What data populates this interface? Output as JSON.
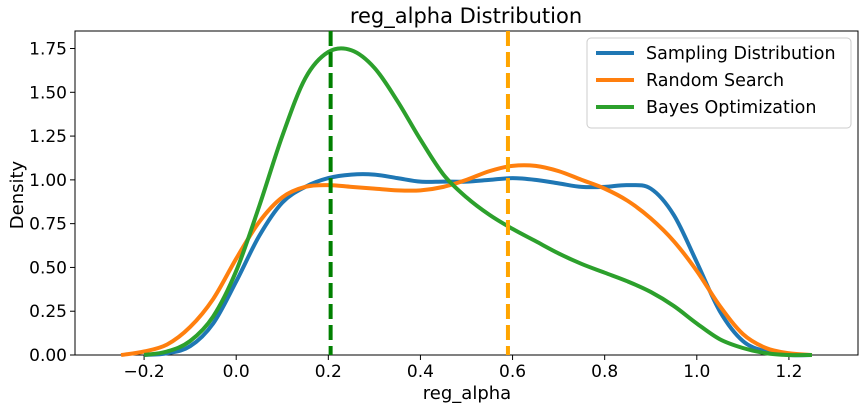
{
  "chart_data": {
    "type": "line",
    "title": "reg_alpha Distribution",
    "xlabel": "reg_alpha",
    "ylabel": "Density",
    "xlim": [
      -0.35,
      1.35
    ],
    "ylim": [
      0,
      1.85
    ],
    "xticks": [
      -0.2,
      0.0,
      0.2,
      0.4,
      0.6,
      0.8,
      1.0,
      1.2
    ],
    "xtick_labels": [
      "−0.2",
      "0.0",
      "0.2",
      "0.4",
      "0.6",
      "0.8",
      "1.0",
      "1.2"
    ],
    "yticks": [
      0.0,
      0.25,
      0.5,
      0.75,
      1.0,
      1.25,
      1.5,
      1.75
    ],
    "ytick_labels": [
      "0.00",
      "0.25",
      "0.50",
      "0.75",
      "1.00",
      "1.25",
      "1.50",
      "1.75"
    ],
    "grid": false,
    "legend_position": "top-right",
    "series": [
      {
        "name": "Sampling Distribution",
        "color": "#1f77b4",
        "x": [
          -0.2,
          -0.15,
          -0.1,
          -0.05,
          0.0,
          0.05,
          0.1,
          0.15,
          0.2,
          0.25,
          0.3,
          0.35,
          0.4,
          0.45,
          0.5,
          0.55,
          0.6,
          0.65,
          0.7,
          0.75,
          0.8,
          0.85,
          0.9,
          0.95,
          1.0,
          1.05,
          1.1,
          1.15,
          1.2,
          1.25
        ],
        "y": [
          0.0,
          0.01,
          0.05,
          0.18,
          0.42,
          0.68,
          0.87,
          0.96,
          1.01,
          1.03,
          1.03,
          1.01,
          0.99,
          0.99,
          0.99,
          1.0,
          1.01,
          1.0,
          0.98,
          0.96,
          0.96,
          0.97,
          0.95,
          0.8,
          0.53,
          0.25,
          0.08,
          0.02,
          0.0,
          0.0
        ]
      },
      {
        "name": "Random Search",
        "color": "#ff7f0e",
        "x": [
          -0.25,
          -0.2,
          -0.15,
          -0.1,
          -0.05,
          0.0,
          0.05,
          0.1,
          0.15,
          0.2,
          0.25,
          0.3,
          0.35,
          0.4,
          0.45,
          0.5,
          0.55,
          0.6,
          0.65,
          0.7,
          0.75,
          0.8,
          0.85,
          0.9,
          0.95,
          1.0,
          1.05,
          1.1,
          1.15,
          1.2,
          1.25
        ],
        "y": [
          0.0,
          0.02,
          0.06,
          0.16,
          0.32,
          0.55,
          0.76,
          0.9,
          0.96,
          0.97,
          0.96,
          0.95,
          0.94,
          0.94,
          0.96,
          1.0,
          1.05,
          1.08,
          1.08,
          1.05,
          1.0,
          0.95,
          0.88,
          0.78,
          0.65,
          0.48,
          0.28,
          0.12,
          0.04,
          0.01,
          0.0
        ]
      },
      {
        "name": "Bayes Optimization",
        "color": "#2ca02c",
        "x": [
          -0.2,
          -0.15,
          -0.1,
          -0.05,
          0.0,
          0.05,
          0.1,
          0.15,
          0.2,
          0.25,
          0.3,
          0.35,
          0.4,
          0.45,
          0.5,
          0.55,
          0.6,
          0.65,
          0.7,
          0.75,
          0.8,
          0.85,
          0.9,
          0.95,
          1.0,
          1.05,
          1.1,
          1.15,
          1.2,
          1.25
        ],
        "y": [
          0.0,
          0.02,
          0.08,
          0.22,
          0.48,
          0.85,
          1.25,
          1.58,
          1.73,
          1.74,
          1.64,
          1.45,
          1.23,
          1.03,
          0.9,
          0.8,
          0.72,
          0.65,
          0.58,
          0.52,
          0.47,
          0.42,
          0.36,
          0.28,
          0.18,
          0.09,
          0.04,
          0.01,
          0.0,
          0.0
        ]
      }
    ],
    "vlines": [
      {
        "x": 0.205,
        "color": "#008000",
        "style": "dashed"
      },
      {
        "x": 0.59,
        "color": "#ffa500",
        "style": "dashed"
      }
    ]
  }
}
